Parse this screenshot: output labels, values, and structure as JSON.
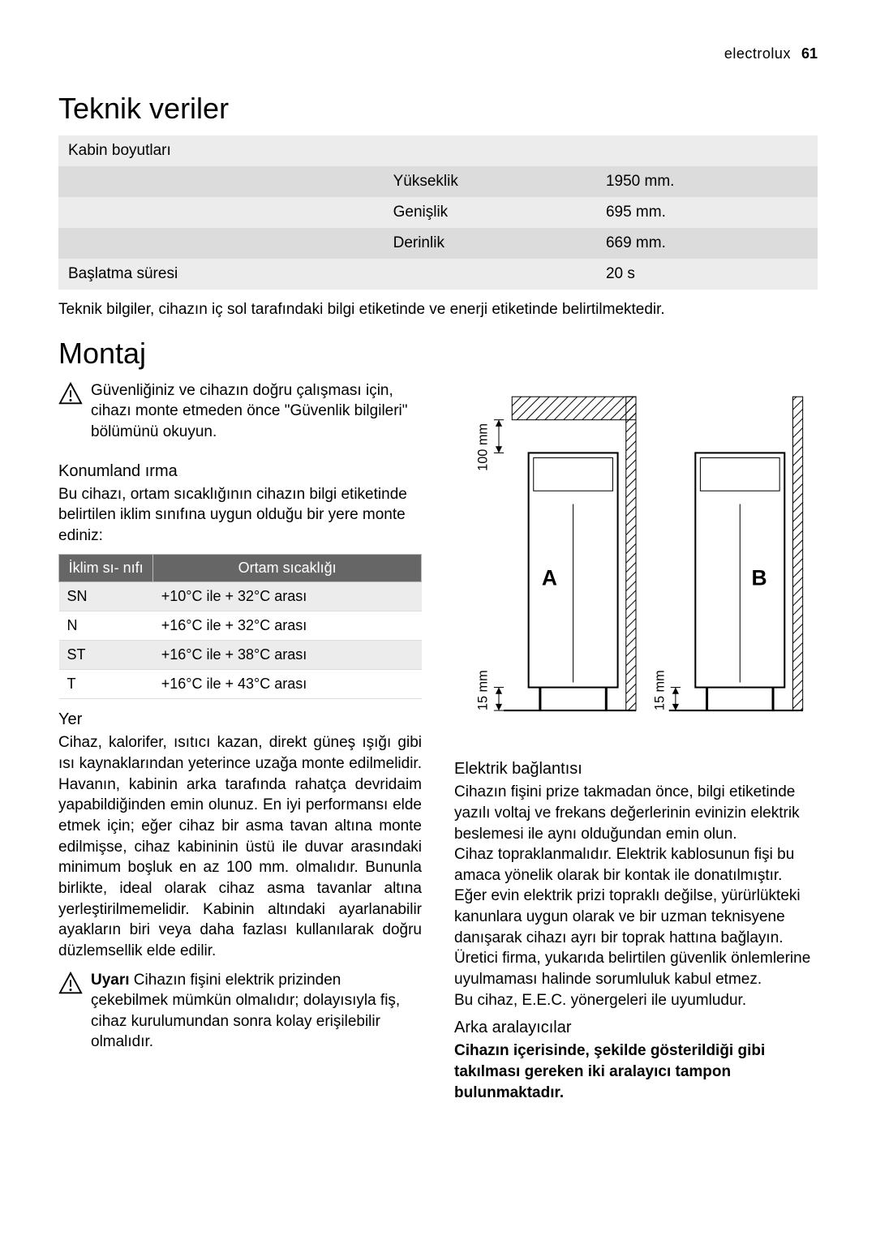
{
  "header": {
    "brand": "electrolux",
    "page_number": "61"
  },
  "section_teknik": {
    "title": "Teknik veriler",
    "rows": [
      {
        "c1": "Kabin boyutları",
        "c2": "",
        "c3": "",
        "band": "light"
      },
      {
        "c1": "",
        "c2": "Yükseklik",
        "c3": "1950 mm.",
        "band": "dark"
      },
      {
        "c1": "",
        "c2": "Genişlik",
        "c3": "695 mm.",
        "band": "light"
      },
      {
        "c1": "",
        "c2": "Derinlik",
        "c3": "669 mm.",
        "band": "dark"
      },
      {
        "c1": "Başlatma süresi",
        "c2": "",
        "c3": "20 s",
        "band": "light"
      }
    ],
    "footer_note": "Teknik bilgiler, cihazın iç sol tarafındaki bilgi etiketinde ve enerji etiketinde belirtilmektedir."
  },
  "section_montaj": {
    "title": "Montaj",
    "warn1": "Güvenliğiniz ve cihazın doğru çalışması için, cihazı monte etmeden önce \"Güvenlik bilgileri\" bölümünü okuyun.",
    "konum_title": "Konumland ırma",
    "konum_text": "Bu cihazı, ortam sıcaklığının cihazın bilgi etiketinde belirtilen iklim sınıfına uygun olduğu bir yere monte ediniz:",
    "climate": {
      "header_left": "İklim sı-\nnıfı",
      "header_right": "Ortam sıcaklığı",
      "rows": [
        {
          "cls": "SN",
          "range": "+10°C ile + 32°C arası"
        },
        {
          "cls": "N",
          "range": "+16°C ile + 32°C arası"
        },
        {
          "cls": "ST",
          "range": "+16°C ile + 38°C arası"
        },
        {
          "cls": "T",
          "range": "+16°C ile + 43°C arası"
        }
      ]
    },
    "yer_title": "Yer",
    "yer_text": "Cihaz, kalorifer, ısıtıcı kazan, direkt güneş ışığı gibi ısı kaynaklarından yeterince uzağa monte edilmelidir. Havanın, kabinin arka tarafında rahatça devridaim yapabildiğinden emin olunuz. En iyi performansı elde etmek için; eğer cihaz bir asma tavan altına monte edilmişse, cihaz kabininin üstü ile duvar arasındaki minimum boşluk en az 100 mm. olmalıdır. Bununla birlikte, ideal olarak cihaz asma tavanlar altına yerleştirilmemelidir. Kabinin altındaki ayarlanabilir ayakların biri veya daha fazlası kullanılarak doğru düzlemsellik elde edilir.",
    "warn2_lead": "Uyarı",
    "warn2_body": " Cihazın fişini elektrik prizinden çekebilmek mümkün olmalıdır; dolayısıyla fiş, cihaz kurulumundan sonra kolay erişilebilir olmalıdır.",
    "diagram": {
      "label_100": "100 mm",
      "label_15a": "15 mm",
      "label_15b": "15 mm",
      "label_A": "A",
      "label_B": "B",
      "stroke": "#000000",
      "hatch": "#000000",
      "bg": "#ffffff"
    },
    "elektrik_title": "Elektrik bağlantısı",
    "elektrik_text": "Cihazın fişini prize takmadan önce, bilgi etiketinde yazılı voltaj ve frekans değerlerinin evinizin elektrik beslemesi ile aynı olduğundan emin olun.\nCihaz topraklanmalıdır. Elektrik kablosunun fişi bu amaca yönelik olarak bir kontak ile donatılmıştır. Eğer evin elektrik prizi topraklı değilse, yürürlükteki kanunlara uygun olarak ve bir uzman teknisyene danışarak cihazı ayrı bir toprak hattına bağlayın.\nÜretici firma, yukarıda belirtilen güvenlik önlemlerine uyulmaması halinde sorumluluk kabul etmez.\nBu cihaz, E.E.C. yönergeleri ile uyumludur.",
    "arka_title": "Arka aralayıcılar",
    "arka_bold": "Cihazın içerisinde, şekilde gösterildiği gibi takılması gereken iki aralayıcı tampon bulunmaktadır."
  }
}
